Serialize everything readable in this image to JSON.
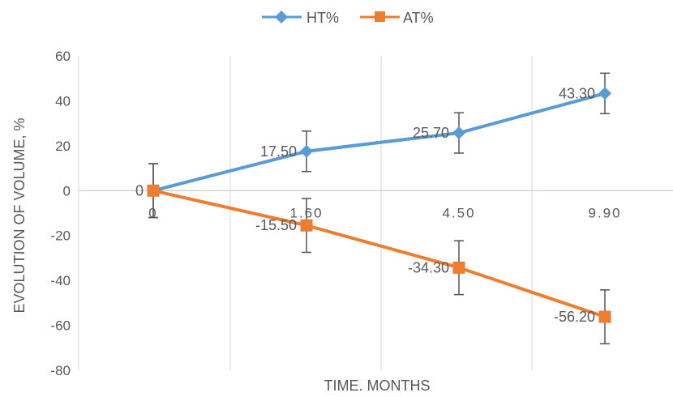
{
  "chart_data": {
    "type": "line",
    "x": [
      "0",
      "1.60",
      "4.50",
      "9.90"
    ],
    "xlabel": "TIME. MONTHS",
    "ylabel": "EVOLUTION OF VOLUME, %",
    "ylim": [
      -80,
      60
    ],
    "yticks": [
      60,
      40,
      20,
      0,
      -20,
      -40,
      -60,
      -80
    ],
    "grid": "vertical",
    "legend_position": "top",
    "series": [
      {
        "name": "HT%",
        "color": "#5B9BD5",
        "marker": "diamond",
        "values": [
          0,
          17.5,
          25.7,
          43.3
        ],
        "labels": [
          "0",
          "17.50",
          "25.70",
          "43.30"
        ],
        "error": [
          12,
          9,
          9,
          9
        ]
      },
      {
        "name": "AT%",
        "color": "#ED7D31",
        "marker": "square",
        "values": [
          0,
          -15.5,
          -34.3,
          -56.2
        ],
        "labels": [
          "",
          "-15.50",
          "-34.30",
          "-56.20"
        ],
        "error": [
          12,
          12,
          12,
          12
        ]
      }
    ]
  }
}
